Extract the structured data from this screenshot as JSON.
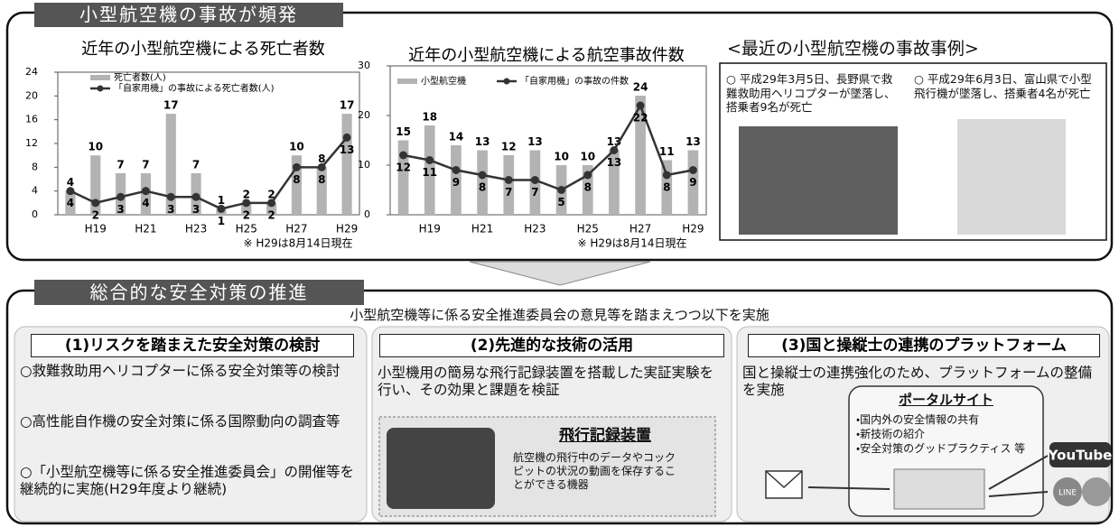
{
  "header": {
    "title": "小型航空機の事故が頻発"
  },
  "chart_data": [
    {
      "type": "bar-line",
      "title": "近年の小型航空機による死亡者数",
      "categories": [
        null,
        "H19",
        null,
        "H21",
        null,
        "H23",
        null,
        "H25",
        null,
        "H27",
        null,
        "H29"
      ],
      "series": [
        {
          "name": "死亡者数(人)",
          "kind": "bar",
          "color": "#b3b3b3",
          "values": [
            4,
            10,
            7,
            7,
            17,
            7,
            1,
            2,
            2,
            10,
            8,
            17
          ]
        },
        {
          "name": "「自家用機」の事故による死亡者数(人)",
          "kind": "line",
          "color": "#333333",
          "values": [
            4,
            2,
            3,
            4,
            3,
            3,
            1,
            2,
            2,
            8,
            8,
            13
          ]
        }
      ],
      "ylim": [
        0,
        24
      ],
      "yticks": [
        0,
        4,
        8,
        12,
        16,
        20,
        24
      ],
      "note": "※ H29は8月14日現在"
    },
    {
      "type": "bar-line",
      "title": "近年の小型航空機による航空事故件数",
      "categories": [
        null,
        "H19",
        null,
        "H21",
        null,
        "H23",
        null,
        "H25",
        null,
        "H27",
        null,
        "H29"
      ],
      "series": [
        {
          "name": "小型航空機",
          "kind": "bar",
          "color": "#b3b3b3",
          "values": [
            15,
            18,
            14,
            13,
            12,
            13,
            10,
            10,
            13,
            24,
            11,
            13
          ]
        },
        {
          "name": "「自家用機」の事故の件数",
          "kind": "line",
          "color": "#333333",
          "values": [
            12,
            11,
            9,
            8,
            7,
            7,
            5,
            8,
            13,
            22,
            8,
            9
          ]
        }
      ],
      "ylim": [
        0,
        30
      ],
      "yticks": [
        0,
        10,
        20,
        30
      ],
      "note": "※ H29は8月14日現在"
    }
  ],
  "cases": {
    "title": "<最近の小型航空機の事故事例>",
    "items": [
      "○ 平成29年3月5日、長野県で救難救助用ヘリコプターが墜落し、搭乗者9名が死亡",
      "○ 平成29年6月3日、富山県で小型飛行機が墜落し、搭乗者4名が死亡"
    ]
  },
  "measures": {
    "title": "総合的な安全対策の推進",
    "lead": "小型航空機等に係る安全推進委員会の意見等を踏まえつつ以下を実施",
    "panels": [
      {
        "heading": "(1)リスクを踏まえた安全対策の検討",
        "items": [
          "○救難救助用ヘリコプターに係る安全対策等の検討",
          "○高性能自作機の安全対策に係る国際動向の調査等",
          "○「小型航空機等に係る安全推進委員会」の開催等を継続的に実施(H29年度より継続)"
        ]
      },
      {
        "heading": "(2)先進的な技術の活用",
        "text": "小型機用の簡易な飛行記録装置を搭載した実証実験を行い、その効果と課題を検証",
        "device_title": "飛行記録装置",
        "device_text": "航空機の飛行中のデータやコックピットの状況の動画を保存することができる機器"
      },
      {
        "heading": "(3)国と操縦士の連携のプラットフォーム",
        "text": "国と操縦士の連携強化のため、プラットフォームの整備を実施",
        "portal_title": "ポータルサイト",
        "portal_items": [
          "・国内外の安全情報の共有",
          "・新技術の紹介",
          "・安全対策のグッドプラクティス 等"
        ],
        "logos": [
          "YouTube",
          "LINE"
        ]
      }
    ]
  }
}
